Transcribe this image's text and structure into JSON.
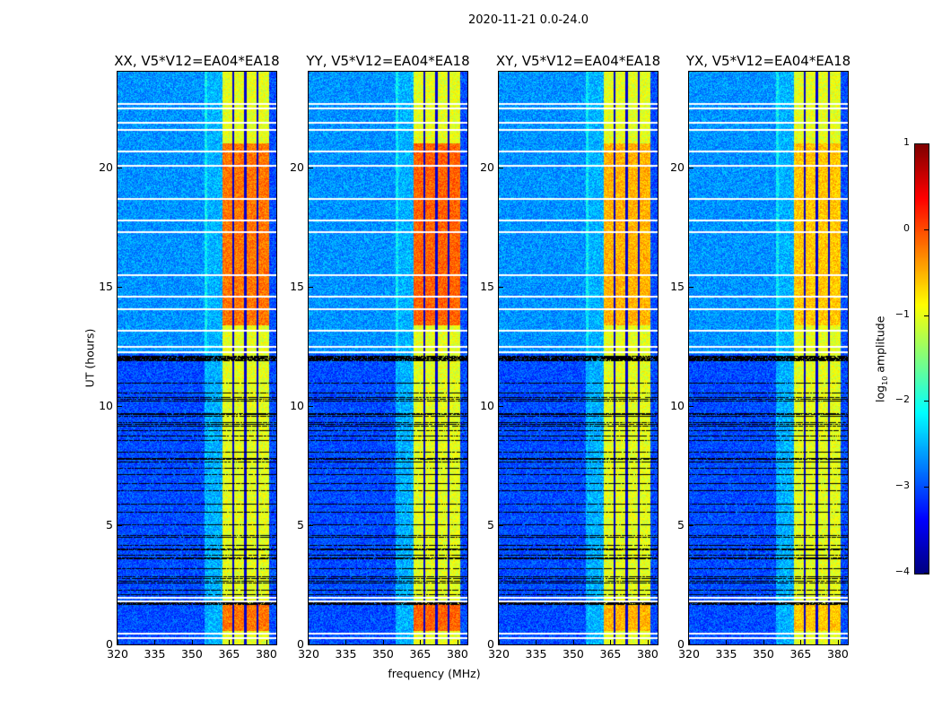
{
  "chart_data": {
    "type": "heatmap",
    "title": "2020-11-21 0.0-24.0",
    "xlabel": "frequency (MHz)",
    "ylabel": "UT (hours)",
    "xlim": [
      320,
      384
    ],
    "ylim": [
      0,
      24
    ],
    "xticks": [
      "320",
      "335",
      "350",
      "365",
      "380"
    ],
    "xtick_values": [
      320,
      335,
      350,
      365,
      380
    ],
    "yticks": [
      "0",
      "5",
      "10",
      "15",
      "20"
    ],
    "ytick_values": [
      0,
      5,
      10,
      15,
      20
    ],
    "colorbar": {
      "label": "log10 amplitude",
      "label_main": "log",
      "label_sub": "10",
      "label_rest": " amplitude",
      "range": [
        -4,
        1
      ],
      "ticks": [
        "1",
        "0",
        "−1",
        "−2",
        "−3",
        "−4"
      ],
      "tick_values": [
        1,
        0,
        -1,
        -2,
        -3,
        -4
      ],
      "colormap": "jet"
    },
    "panels": [
      {
        "title": "XX, V5*V12=EA04*EA18",
        "strong_band_level": -0.2
      },
      {
        "title": "YY, V5*V12=EA04*EA18",
        "strong_band_level": -0.1
      },
      {
        "title": "XY, V5*V12=EA04*EA18",
        "strong_band_level": -0.5
      },
      {
        "title": "YX, V5*V12=EA04*EA18",
        "strong_band_level": -0.6
      }
    ],
    "description_values": {
      "background_level": -3.0,
      "band_MHz": [
        362,
        381
      ],
      "band_level": -1.0,
      "band_gaps_MHz": [
        366.5,
        371.3,
        376.2
      ],
      "white_flag_rows_UT": [
        0.3,
        0.5,
        1.85,
        2.0,
        12.3,
        12.5,
        13.2,
        14.1,
        14.6,
        15.5,
        17.3,
        17.8,
        18.7,
        20.1,
        20.7,
        21.6,
        21.9,
        22.5,
        22.7
      ],
      "dense_black_flag_range_UT": [
        2.0,
        12.0
      ]
    }
  }
}
